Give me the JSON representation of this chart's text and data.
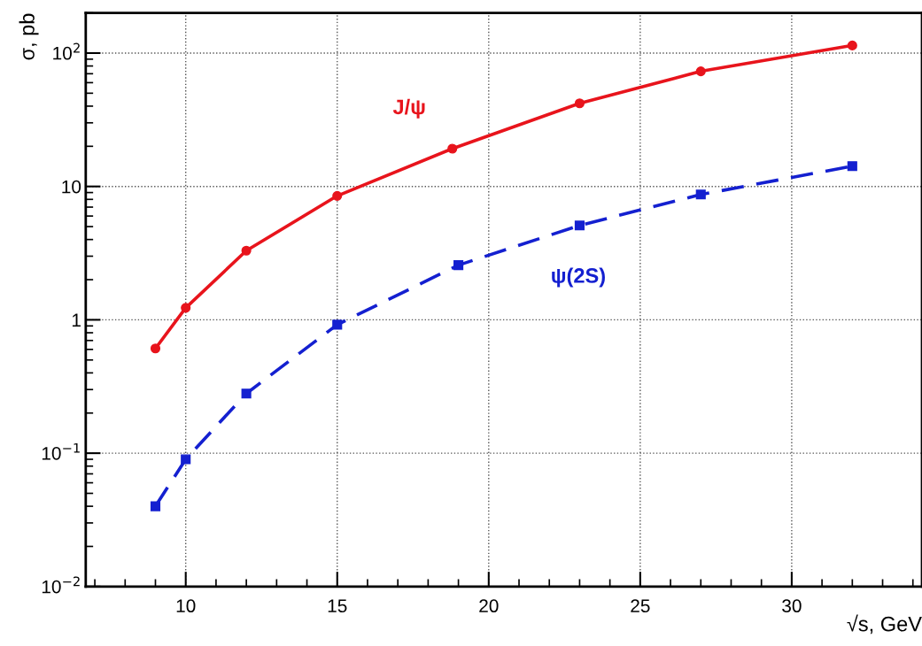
{
  "chart_data": {
    "type": "line",
    "xlabel": "√s, GeV",
    "ylabel": "σ, pb",
    "series": [
      {
        "name": "J/ψ",
        "color": "#e8141c",
        "marker": "circle",
        "line_style": "solid",
        "x": [
          9,
          10,
          12,
          15,
          18.8,
          23,
          27,
          32
        ],
        "values": [
          0.61,
          1.23,
          3.3,
          8.5,
          19.2,
          42,
          73,
          114
        ]
      },
      {
        "name": "ψ(2S)",
        "color": "#1420d0",
        "marker": "square",
        "line_style": "dashed",
        "x": [
          9,
          10,
          12,
          15,
          19,
          23,
          27,
          32
        ],
        "values": [
          0.04,
          0.09,
          0.28,
          0.92,
          2.57,
          5.1,
          8.7,
          14.2
        ]
      }
    ],
    "log": "y",
    "xlim": [
      6.7,
      34.3
    ],
    "xticks": [
      10,
      15,
      20,
      25,
      30
    ],
    "ylim": [
      0.01,
      200
    ],
    "yticks": [
      {
        "value": 0.01,
        "label": "10$^{−2}$"
      },
      {
        "value": 0.1,
        "label": "10$^{−1}$"
      },
      1,
      10,
      {
        "value": 100,
        "label": "10$^{2}$"
      }
    ],
    "grid": true
  }
}
